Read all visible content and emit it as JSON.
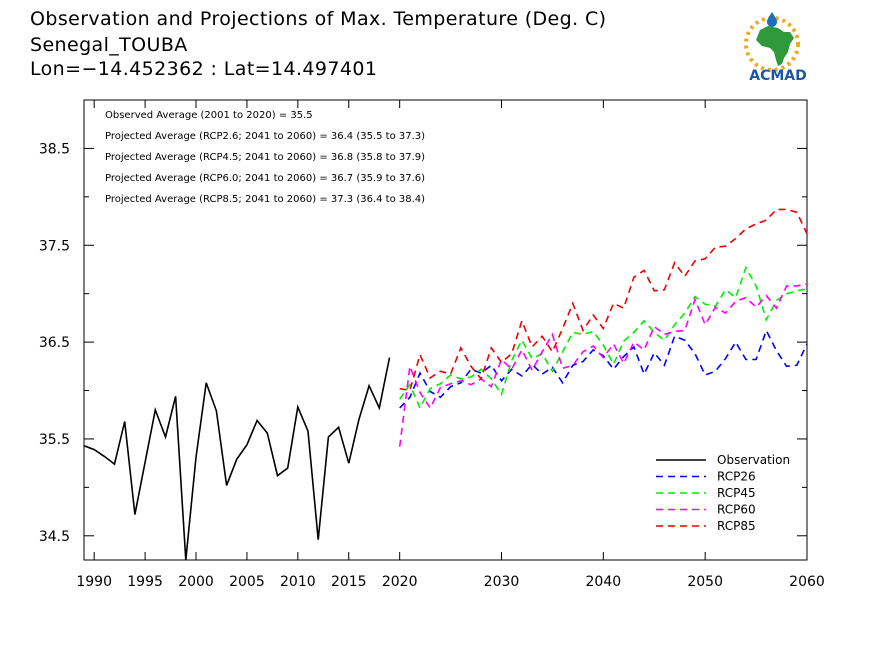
{
  "header": {
    "title": "Observation and Projections of Max. Temperature (Deg. C)",
    "location": "Senegal_TOUBA",
    "coords": "Lon=−14.452362 : Lat=14.497401"
  },
  "logo": {
    "text": "ACMAD",
    "icon": "africa-map-logo",
    "colors": {
      "africa": "#2e9a3c",
      "sun": "#f2a81d",
      "drop": "#1a6fb5",
      "text": "#1a56a3"
    }
  },
  "annotations": [
    "Observed Average (2001 to 2020) = 35.5",
    "Projected Average (RCP2.6; 2041 to 2060) = 36.4 (35.5 to 37.3)",
    "Projected Average (RCP4.5; 2041 to 2060) = 36.8 (35.8 to 37.9)",
    "Projected Average (RCP6.0; 2041 to 2060) = 36.7 (35.9 to 37.6)",
    "Projected Average (RCP8.5; 2041 to 2060) = 37.3 (36.4 to 38.4)"
  ],
  "chart_data": {
    "type": "line",
    "title": "Observation and Projections of Max. Temperature (Deg. C)",
    "xlim": [
      1989,
      2060
    ],
    "ylim": [
      34.25,
      39.0
    ],
    "x_ticks": [
      1990,
      1995,
      2000,
      2005,
      2010,
      2015,
      2020,
      2030,
      2040,
      2050,
      2060
    ],
    "y_ticks": [
      34.5,
      35.5,
      36.5,
      37.5,
      38.5
    ],
    "legend": {
      "position": "bottom-right",
      "entries": [
        "Observation",
        "RCP26",
        "RCP45",
        "RCP60",
        "RCP85"
      ]
    },
    "series": [
      {
        "name": "Observation",
        "color": "#000000",
        "dash": "solid",
        "x": [
          1989,
          1990,
          1991,
          1992,
          1993,
          1994,
          1995,
          1996,
          1997,
          1998,
          1999,
          2000,
          2001,
          2002,
          2003,
          2004,
          2005,
          2006,
          2007,
          2008,
          2009,
          2010,
          2011,
          2012,
          2013,
          2014,
          2015,
          2016,
          2017,
          2018,
          2019,
          2020
        ],
        "y": [
          35.43,
          35.39,
          35.32,
          35.24,
          35.68,
          34.72,
          35.26,
          35.8,
          35.52,
          35.94,
          34.25,
          35.31,
          36.08,
          35.79,
          35.02,
          35.29,
          35.44,
          35.69,
          35.56,
          35.12,
          35.2,
          35.83,
          35.58,
          34.46,
          35.52,
          35.62,
          35.25,
          35.7,
          36.05,
          35.82,
          36.34,
          null
        ]
      },
      {
        "name": "RCP26",
        "color": "#0000ff",
        "dash": "dashed",
        "x": [
          2020,
          2021,
          2022,
          2023,
          2024,
          2025,
          2026,
          2027,
          2028,
          2029,
          2030,
          2031,
          2032,
          2033,
          2034,
          2035,
          2036,
          2037,
          2038,
          2039,
          2040,
          2041,
          2042,
          2043,
          2044,
          2045,
          2046,
          2047,
          2048,
          2049,
          2050,
          2051,
          2052,
          2053,
          2054,
          2055,
          2056,
          2057,
          2058,
          2059,
          2060
        ],
        "y": [
          35.82,
          35.93,
          36.18,
          35.99,
          35.93,
          36.04,
          36.08,
          36.22,
          36.18,
          36.26,
          36.1,
          36.22,
          36.15,
          36.27,
          36.17,
          36.24,
          36.08,
          36.26,
          36.3,
          36.42,
          36.36,
          36.22,
          36.35,
          36.45,
          36.17,
          36.39,
          36.26,
          36.56,
          36.52,
          36.38,
          36.16,
          36.2,
          36.33,
          36.5,
          36.32,
          36.32,
          36.62,
          36.41,
          36.25,
          36.26,
          36.48
        ]
      },
      {
        "name": "RCP45",
        "color": "#00ee00",
        "dash": "dashed",
        "x": [
          2020,
          2021,
          2022,
          2023,
          2024,
          2025,
          2026,
          2027,
          2028,
          2029,
          2030,
          2031,
          2032,
          2033,
          2034,
          2035,
          2036,
          2037,
          2038,
          2039,
          2040,
          2041,
          2042,
          2043,
          2044,
          2045,
          2046,
          2047,
          2048,
          2049,
          2050,
          2051,
          2052,
          2053,
          2054,
          2055,
          2056,
          2057,
          2058,
          2059,
          2060
        ],
        "y": [
          35.91,
          36.06,
          35.82,
          36.02,
          36.07,
          36.16,
          36.12,
          36.14,
          36.22,
          36.12,
          35.96,
          36.31,
          36.52,
          36.33,
          36.38,
          36.2,
          36.4,
          36.6,
          36.58,
          36.61,
          36.47,
          36.27,
          36.51,
          36.6,
          36.72,
          36.6,
          36.52,
          36.68,
          36.8,
          36.97,
          36.89,
          36.87,
          37.04,
          36.96,
          37.27,
          37.08,
          36.73,
          36.93,
          37.0,
          37.03,
          37.05
        ]
      },
      {
        "name": "RCP60",
        "color": "#ff00ff",
        "dash": "dashed",
        "x": [
          2020,
          2021,
          2022,
          2023,
          2024,
          2025,
          2026,
          2027,
          2028,
          2029,
          2030,
          2031,
          2032,
          2033,
          2034,
          2035,
          2036,
          2037,
          2038,
          2039,
          2040,
          2041,
          2042,
          2043,
          2044,
          2045,
          2046,
          2047,
          2048,
          2049,
          2050,
          2051,
          2052,
          2053,
          2054,
          2055,
          2056,
          2057,
          2058,
          2059,
          2060
        ],
        "y": [
          35.42,
          36.25,
          35.98,
          35.82,
          36.03,
          36.07,
          36.1,
          36.06,
          36.12,
          36.04,
          36.32,
          36.22,
          36.42,
          36.21,
          36.4,
          36.58,
          36.23,
          36.26,
          36.4,
          36.46,
          36.34,
          36.48,
          36.28,
          36.5,
          36.42,
          36.66,
          36.58,
          36.61,
          36.62,
          36.94,
          36.68,
          36.86,
          36.8,
          36.92,
          36.96,
          36.86,
          36.98,
          36.85,
          37.08,
          37.08,
          37.1
        ]
      },
      {
        "name": "RCP85",
        "color": "#ee0000",
        "dash": "dashed",
        "x": [
          2020,
          2021,
          2022,
          2023,
          2024,
          2025,
          2026,
          2027,
          2028,
          2029,
          2030,
          2031,
          2032,
          2033,
          2034,
          2035,
          2036,
          2037,
          2038,
          2039,
          2040,
          2041,
          2042,
          2043,
          2044,
          2045,
          2046,
          2047,
          2048,
          2049,
          2050,
          2051,
          2052,
          2053,
          2054,
          2055,
          2056,
          2057,
          2058,
          2059,
          2060
        ],
        "y": [
          36.02,
          36.0,
          36.37,
          36.13,
          36.2,
          36.17,
          36.44,
          36.25,
          36.12,
          36.44,
          36.29,
          36.38,
          36.72,
          36.45,
          36.56,
          36.4,
          36.64,
          36.9,
          36.62,
          36.78,
          36.64,
          36.9,
          36.85,
          37.17,
          37.24,
          37.03,
          37.04,
          37.32,
          37.18,
          37.34,
          37.36,
          37.48,
          37.49,
          37.57,
          37.67,
          37.72,
          37.76,
          37.87,
          37.87,
          37.84,
          37.62
        ]
      }
    ]
  }
}
